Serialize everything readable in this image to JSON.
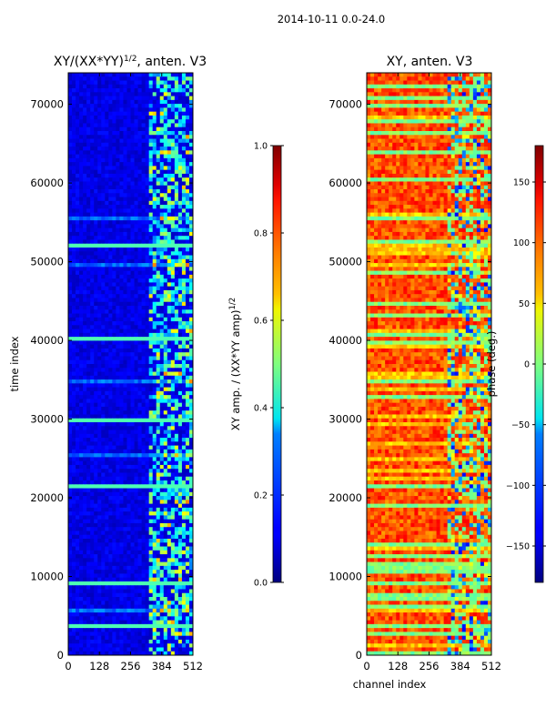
{
  "figure": {
    "suptitle": "2014-10-11 0.0-24.0"
  },
  "chart_data": [
    {
      "type": "heatmap",
      "title_main": "XY/(XX*YY)",
      "title_sup": "1/2",
      "title_rest": ", anten. V3",
      "xlabel": "",
      "ylabel": "time index",
      "xlim": [
        0,
        512
      ],
      "ylim": [
        0,
        74000
      ],
      "xticks": [
        0,
        128,
        256,
        384,
        512
      ],
      "yticks": [
        0,
        10000,
        20000,
        30000,
        40000,
        50000,
        60000,
        70000
      ],
      "colorbar": {
        "label_main": "XY amp. / (XX*YY amp)",
        "label_sup": "1/2",
        "range": [
          0.0,
          1.0
        ],
        "ticks": [
          "0.0",
          "0.2",
          "0.4",
          "0.6",
          "0.8",
          "1.0"
        ],
        "colormap": "jet"
      },
      "description": "Mostly low values (~0.05-0.15) across channels 0-320; higher values (~0.3-0.6) concentrated in channels ~330-500 with horizontal striping in time."
    },
    {
      "type": "heatmap",
      "title_main": "XY, anten. V3",
      "xlabel": "channel index",
      "ylabel": "",
      "xlim": [
        0,
        512
      ],
      "ylim": [
        0,
        74000
      ],
      "xticks": [
        0,
        128,
        256,
        384,
        512
      ],
      "yticks": [
        0,
        10000,
        20000,
        30000,
        40000,
        50000,
        60000,
        70000
      ],
      "colorbar": {
        "label": "phase (deg.)",
        "range": [
          -180,
          180
        ],
        "ticks": [
          "−150",
          "−100",
          "−50",
          "0",
          "50",
          "100",
          "150"
        ],
        "colormap": "jet"
      },
      "description": "Phase mostly ~90-150 deg (orange/red) with horizontal bands near 0 deg (green); channels ~320-512 noisy with mixed phases."
    }
  ]
}
